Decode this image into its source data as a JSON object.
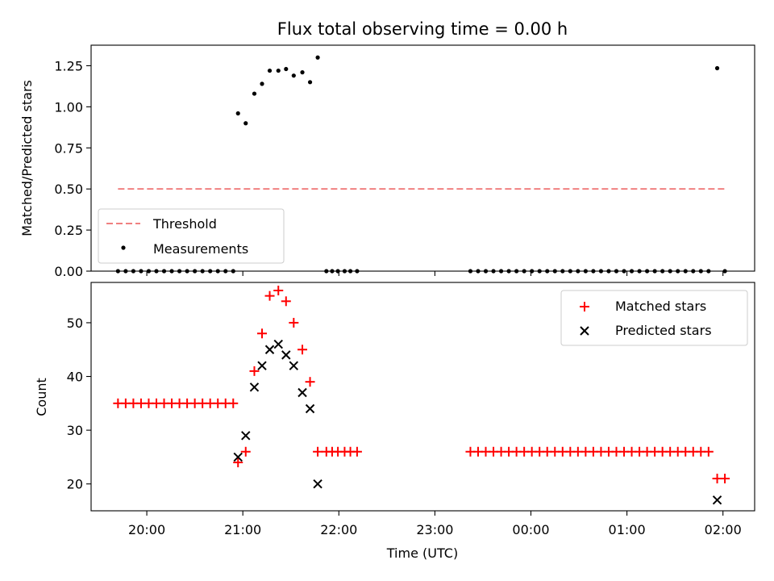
{
  "chart_data": [
    {
      "type": "scatter",
      "title": "Flux total observing time = 0.00 h",
      "xlabel": "",
      "ylabel": "Matched/Predicted stars",
      "ylim": [
        0,
        1.375
      ],
      "yticks": [
        "0.00",
        "0.25",
        "0.50",
        "0.75",
        "1.00",
        "1.25"
      ],
      "ytick_values": [
        0,
        0.25,
        0.5,
        0.75,
        1.0,
        1.25
      ],
      "xlim_hours": [
        19.42,
        26.33
      ],
      "xtick_hours": [
        20,
        21,
        22,
        23,
        24,
        25,
        26
      ],
      "grid": false,
      "legend": "lower-left",
      "colors": {
        "threshold": "#f08080",
        "measurements": "#000000"
      },
      "threshold": {
        "name": "Threshold",
        "value": 0.5,
        "x_range_hours": [
          19.7,
          26.04
        ]
      },
      "measurements": {
        "name": "Measurements",
        "x_hours": [
          19.7,
          19.78,
          19.86,
          19.94,
          20.02,
          20.1,
          20.18,
          20.26,
          20.34,
          20.42,
          20.5,
          20.58,
          20.66,
          20.74,
          20.82,
          20.9,
          20.95,
          21.03,
          21.12,
          21.2,
          21.28,
          21.37,
          21.45,
          21.53,
          21.62,
          21.7,
          21.78,
          21.87,
          21.93,
          21.99,
          22.06,
          22.12,
          22.19,
          23.37,
          23.45,
          23.53,
          23.61,
          23.69,
          23.77,
          23.85,
          23.93,
          24.01,
          24.09,
          24.17,
          24.25,
          24.33,
          24.41,
          24.49,
          24.57,
          24.65,
          24.73,
          24.81,
          24.89,
          24.97,
          25.05,
          25.13,
          25.21,
          25.29,
          25.37,
          25.45,
          25.53,
          25.61,
          25.69,
          25.77,
          25.85,
          25.94,
          26.02
        ],
        "y": [
          0,
          0,
          0,
          0,
          0,
          0,
          0,
          0,
          0,
          0,
          0,
          0,
          0,
          0,
          0,
          0,
          0.96,
          0.9,
          1.08,
          1.14,
          1.22,
          1.22,
          1.23,
          1.19,
          1.21,
          1.15,
          1.3,
          0,
          0,
          0,
          0,
          0,
          0,
          0,
          0,
          0,
          0,
          0,
          0,
          0,
          0,
          0,
          0,
          0,
          0,
          0,
          0,
          0,
          0,
          0,
          0,
          0,
          0,
          0,
          0,
          0,
          0,
          0,
          0,
          0,
          0,
          0,
          0,
          0,
          0,
          1.235,
          0
        ]
      }
    },
    {
      "type": "scatter",
      "title": "",
      "xlabel": "Time (UTC)",
      "ylabel": "Count",
      "ylim": [
        15,
        57.5
      ],
      "yticks": [
        "20",
        "30",
        "40",
        "50"
      ],
      "ytick_values": [
        20,
        30,
        40,
        50
      ],
      "xlim_hours": [
        19.42,
        26.33
      ],
      "xtick_hours": [
        20,
        21,
        22,
        23,
        24,
        25,
        26
      ],
      "xticks": [
        "20:00",
        "21:00",
        "22:00",
        "23:00",
        "00:00",
        "01:00",
        "02:00"
      ],
      "grid": false,
      "legend": "upper-right",
      "colors": {
        "matched": "#ff0000",
        "predicted": "#000000"
      },
      "matched": {
        "name": "Matched stars",
        "x_hours": [
          19.7,
          19.78,
          19.86,
          19.94,
          20.02,
          20.1,
          20.18,
          20.26,
          20.34,
          20.42,
          20.5,
          20.58,
          20.66,
          20.74,
          20.82,
          20.9,
          20.95,
          21.03,
          21.12,
          21.2,
          21.28,
          21.37,
          21.45,
          21.53,
          21.62,
          21.7,
          21.78,
          21.87,
          21.93,
          21.99,
          22.06,
          22.12,
          22.19,
          23.37,
          23.45,
          23.53,
          23.61,
          23.69,
          23.77,
          23.85,
          23.93,
          24.01,
          24.09,
          24.17,
          24.25,
          24.33,
          24.41,
          24.49,
          24.57,
          24.65,
          24.73,
          24.81,
          24.89,
          24.97,
          25.05,
          25.13,
          25.21,
          25.29,
          25.37,
          25.45,
          25.53,
          25.61,
          25.69,
          25.77,
          25.85,
          25.94,
          26.02
        ],
        "y": [
          35,
          35,
          35,
          35,
          35,
          35,
          35,
          35,
          35,
          35,
          35,
          35,
          35,
          35,
          35,
          35,
          24,
          26,
          41,
          48,
          55,
          56,
          54,
          50,
          45,
          39,
          26,
          26,
          26,
          26,
          26,
          26,
          26,
          26,
          26,
          26,
          26,
          26,
          26,
          26,
          26,
          26,
          26,
          26,
          26,
          26,
          26,
          26,
          26,
          26,
          26,
          26,
          26,
          26,
          26,
          26,
          26,
          26,
          26,
          26,
          26,
          26,
          26,
          26,
          26,
          21,
          21
        ]
      },
      "predicted": {
        "name": "Predicted stars",
        "x_hours": [
          20.95,
          21.03,
          21.12,
          21.2,
          21.28,
          21.37,
          21.45,
          21.53,
          21.62,
          21.7,
          21.78,
          25.94
        ],
        "y": [
          25,
          29,
          38,
          42,
          45,
          46,
          44,
          42,
          37,
          34,
          20,
          17
        ]
      }
    }
  ]
}
